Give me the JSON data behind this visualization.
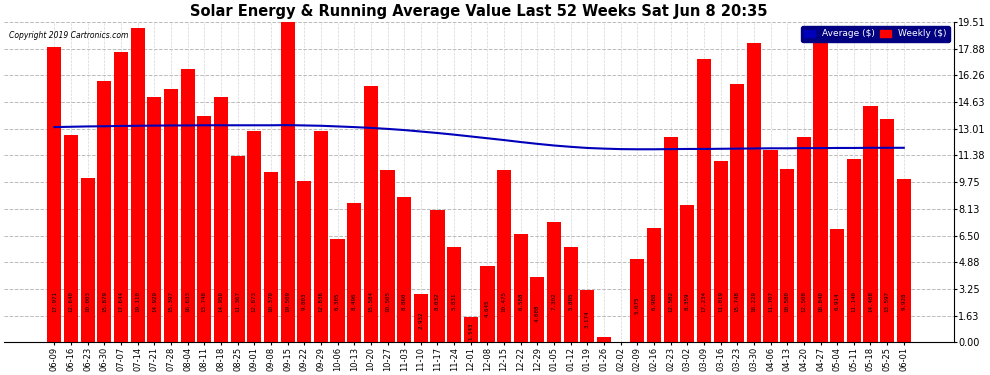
{
  "title": "Solar Energy & Running Average Value Last 52 Weeks Sat Jun 8 20:35",
  "copyright": "Copyright 2019 Cartronics.com",
  "bar_color": "#FF0000",
  "avg_line_color": "#0000BB",
  "background_color": "#FFFFFF",
  "plot_bg_color": "#FFFFFF",
  "grid_color": "#BBBBBB",
  "ylim": [
    0,
    19.51
  ],
  "yticks": [
    0.0,
    1.63,
    3.25,
    4.88,
    6.5,
    8.13,
    9.75,
    11.38,
    13.01,
    14.63,
    16.26,
    17.88,
    19.51
  ],
  "categories": [
    "06-09",
    "06-16",
    "06-23",
    "06-30",
    "07-07",
    "07-14",
    "07-21",
    "07-28",
    "08-04",
    "08-11",
    "08-18",
    "08-25",
    "09-01",
    "09-08",
    "09-15",
    "09-22",
    "09-29",
    "10-06",
    "10-13",
    "10-20",
    "10-27",
    "11-03",
    "11-10",
    "11-17",
    "11-24",
    "12-01",
    "12-08",
    "12-15",
    "12-22",
    "12-29",
    "01-05",
    "01-12",
    "01-19",
    "01-26",
    "02-02",
    "02-09",
    "02-16",
    "02-23",
    "03-02",
    "03-09",
    "03-16",
    "03-23",
    "03-30",
    "04-06",
    "04-13",
    "04-20",
    "04-27",
    "05-04",
    "05-11",
    "05-18",
    "05-25",
    "06-01"
  ],
  "values": [
    17.971,
    12.64,
    10.003,
    15.879,
    17.644,
    19.11,
    14.929,
    15.397,
    16.633,
    13.748,
    14.95,
    11.367,
    12.873,
    10.379,
    19.509,
    9.803,
    12.836,
    6.305,
    8.496,
    15.584,
    10.505,
    8.86,
    2.932,
    8.032,
    5.831,
    1.543,
    4.645,
    10.475,
    6.588,
    4.008,
    7.302,
    5.805,
    3.174,
    0.332,
    0.0,
    5.075,
    6.988,
    12.502,
    8.359,
    17.234,
    11.019,
    15.748,
    18.229,
    11.707,
    10.58,
    12.508,
    18.84,
    6.914,
    11.14,
    14.408,
    13.597,
    9.928
  ],
  "avg_values": [
    13.1,
    13.12,
    13.14,
    13.15,
    13.17,
    13.18,
    13.19,
    13.2,
    13.2,
    13.21,
    13.21,
    13.21,
    13.21,
    13.21,
    13.22,
    13.2,
    13.18,
    13.14,
    13.1,
    13.05,
    12.99,
    12.92,
    12.83,
    12.74,
    12.64,
    12.53,
    12.42,
    12.31,
    12.19,
    12.08,
    11.98,
    11.9,
    11.83,
    11.79,
    11.76,
    11.75,
    11.75,
    11.76,
    11.77,
    11.77,
    11.78,
    11.79,
    11.8,
    11.81,
    11.81,
    11.82,
    11.82,
    11.83,
    11.83,
    11.84,
    11.84,
    11.84
  ]
}
